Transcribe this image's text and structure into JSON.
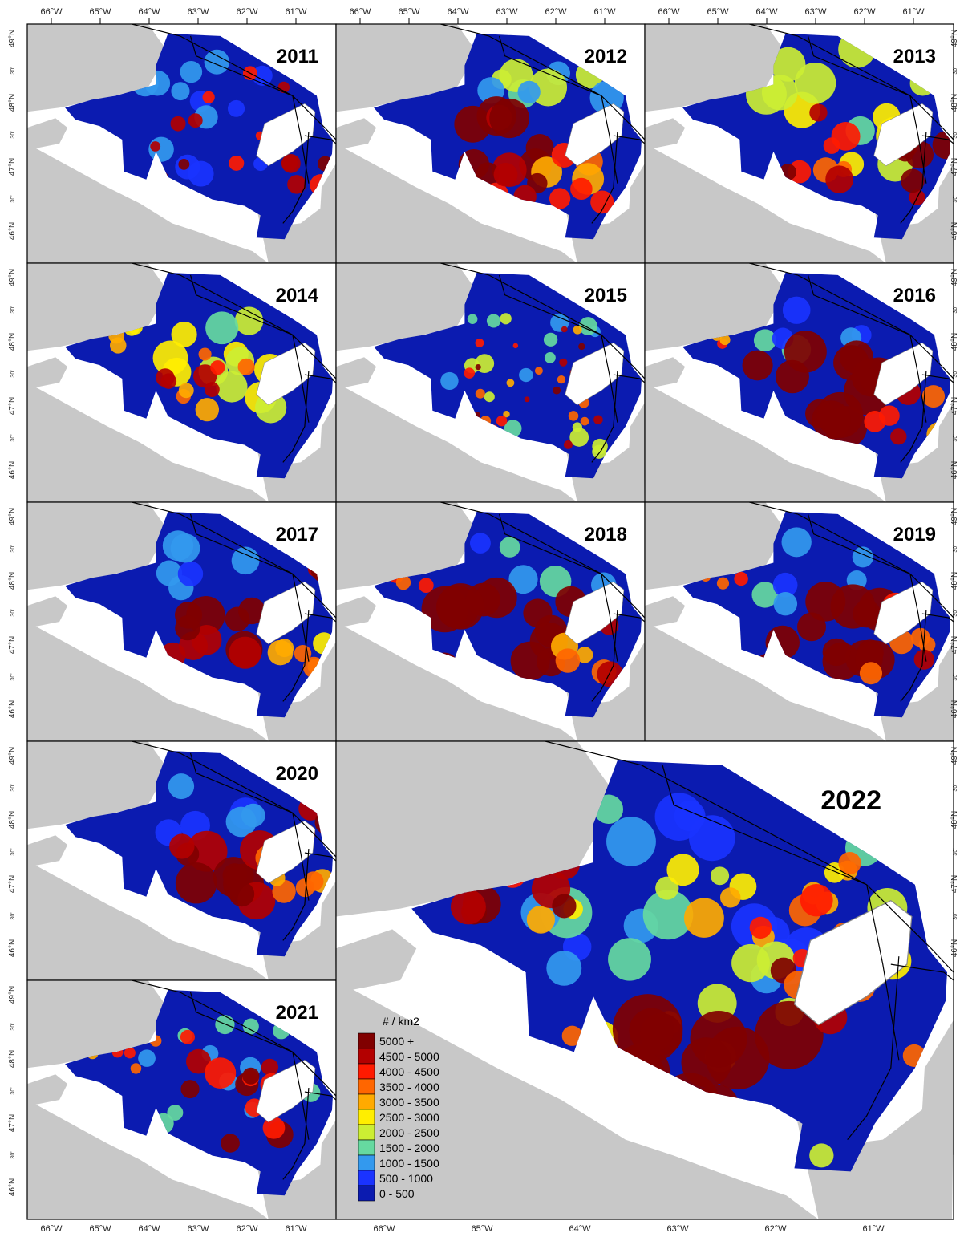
{
  "figure": {
    "panels": [
      {
        "year": "2011",
        "pattern": "patchy"
      },
      {
        "year": "2012",
        "pattern": "hot-center"
      },
      {
        "year": "2013",
        "pattern": "warm"
      },
      {
        "year": "2014",
        "pattern": "warm-center"
      },
      {
        "year": "2015",
        "pattern": "speckled"
      },
      {
        "year": "2016",
        "pattern": "very-hot"
      },
      {
        "year": "2017",
        "pattern": "hot-south"
      },
      {
        "year": "2018",
        "pattern": "very-hot"
      },
      {
        "year": "2019",
        "pattern": "very-hot"
      },
      {
        "year": "2020",
        "pattern": "hot-south"
      },
      {
        "year": "2021",
        "pattern": "patchy-hot"
      },
      {
        "year": "2022",
        "pattern": "big",
        "large": true
      }
    ],
    "lon_labels": [
      "66°W",
      "65°W",
      "64°W",
      "63°W",
      "62°W",
      "61°W"
    ],
    "lat_labels": [
      "49°N",
      "30'",
      "48°N",
      "30'",
      "47°N",
      "30'",
      "46°N",
      "30'"
    ],
    "legend": {
      "title": "# / km2",
      "classes": [
        {
          "label": "5000 +",
          "color": "#800000"
        },
        {
          "label": "4500 - 5000",
          "color": "#b30000"
        },
        {
          "label": "4000 - 4500",
          "color": "#ff1a00"
        },
        {
          "label": "3500 - 4000",
          "color": "#ff6600"
        },
        {
          "label": "3000 - 3500",
          "color": "#ffaa00"
        },
        {
          "label": "2500 - 3000",
          "color": "#ffee00"
        },
        {
          "label": "2000 - 2500",
          "color": "#ccee33"
        },
        {
          "label": "1500 - 2000",
          "color": "#66d9a0"
        },
        {
          "label": "1000 - 1500",
          "color": "#3399ee"
        },
        {
          "label": "500 - 1000",
          "color": "#1a33ff"
        },
        {
          "label": "0 - 500",
          "color": "#0b1bb0"
        }
      ]
    },
    "colors": {
      "land": "#c8c8c8",
      "water": "#ffffff",
      "frame": "#000000"
    }
  }
}
